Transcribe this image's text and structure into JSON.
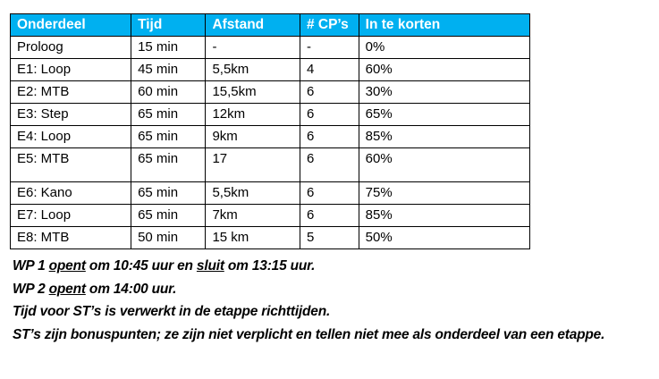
{
  "table": {
    "header_color": "#00b0f0",
    "headers": [
      "Onderdeel",
      "Tijd",
      "Afstand",
      "# CP’s",
      "In te korten"
    ],
    "rows": [
      [
        "Proloog",
        "15 min",
        "-",
        "-",
        "0%"
      ],
      [
        "E1: Loop",
        "45 min",
        "5,5km",
        "4",
        "60%"
      ],
      [
        "E2: MTB",
        "60 min",
        "15,5km",
        "6",
        "30%"
      ],
      [
        "E3: Step",
        "65 min",
        "12km",
        "6",
        "65%"
      ],
      [
        "E4: Loop",
        "65 min",
        "9km",
        "6",
        "85%"
      ],
      [
        "E5: MTB",
        "65 min",
        "17",
        "6",
        "60%"
      ],
      [
        "E6: Kano",
        "65 min",
        "5,5km",
        "6",
        "75%"
      ],
      [
        "E7: Loop",
        "65 min",
        "7km",
        "6",
        "85%"
      ],
      [
        "E8: MTB",
        "50 min",
        "15 km",
        "5",
        "50%"
      ]
    ]
  },
  "notes": [
    [
      {
        "t": "WP 1 "
      },
      {
        "t": "opent",
        "u": true
      },
      {
        "t": " om 10:45 uur en "
      },
      {
        "t": "sluit",
        "u": true
      },
      {
        "t": " om 13:15 uur."
      }
    ],
    [
      {
        "t": "WP 2 "
      },
      {
        "t": "opent",
        "u": true
      },
      {
        "t": " om 14:00 uur."
      }
    ],
    [
      {
        "t": "Tijd voor ST’s is verwerkt in de etappe richttijden."
      }
    ],
    [
      {
        "t": "ST’s zijn bonuspunten; ze zijn niet verplicht en tellen niet mee als onderdeel van een etappe."
      }
    ]
  ]
}
